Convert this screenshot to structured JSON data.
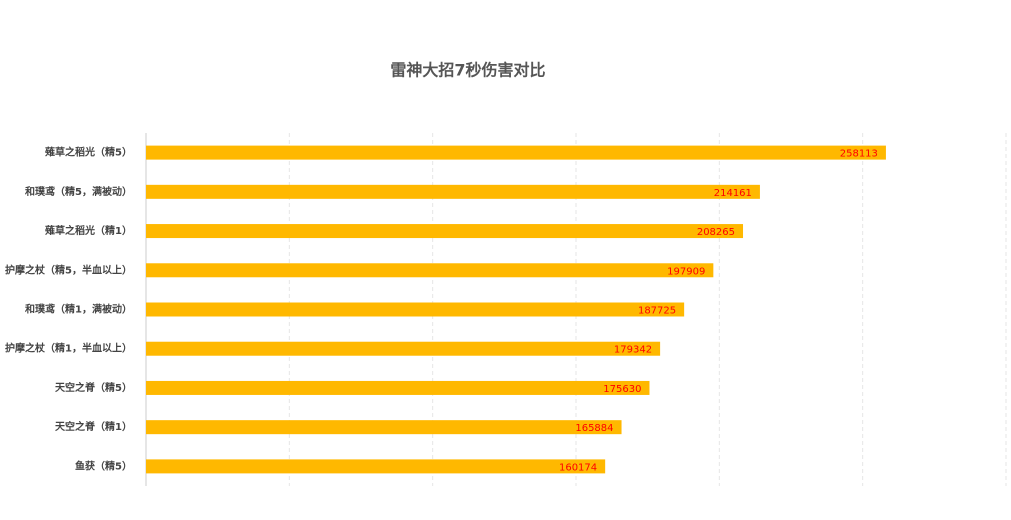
{
  "chart_data": {
    "type": "hbar",
    "title": "雷神大招7秒伤害对比",
    "categories": [
      "薙草之稻光（精5）",
      "和璞鸢（精5，满被动）",
      "薙草之稻光（精1）",
      "护摩之杖（精5，半血以上）",
      "和璞鸢（精1，满被动）",
      "护摩之杖（精1，半血以上）",
      "天空之脊（精5）",
      "天空之脊（精1）",
      "鱼获（精5）"
    ],
    "values": [
      258113,
      214161,
      208265,
      197909,
      187725,
      179342,
      175630,
      165884,
      160174
    ],
    "color": "#ffb800",
    "label_color": "#ff0000",
    "xlim": [
      0,
      300000
    ],
    "xticks": [
      0,
      50000,
      100000,
      150000,
      200000,
      250000,
      300000
    ],
    "grid": true
  }
}
